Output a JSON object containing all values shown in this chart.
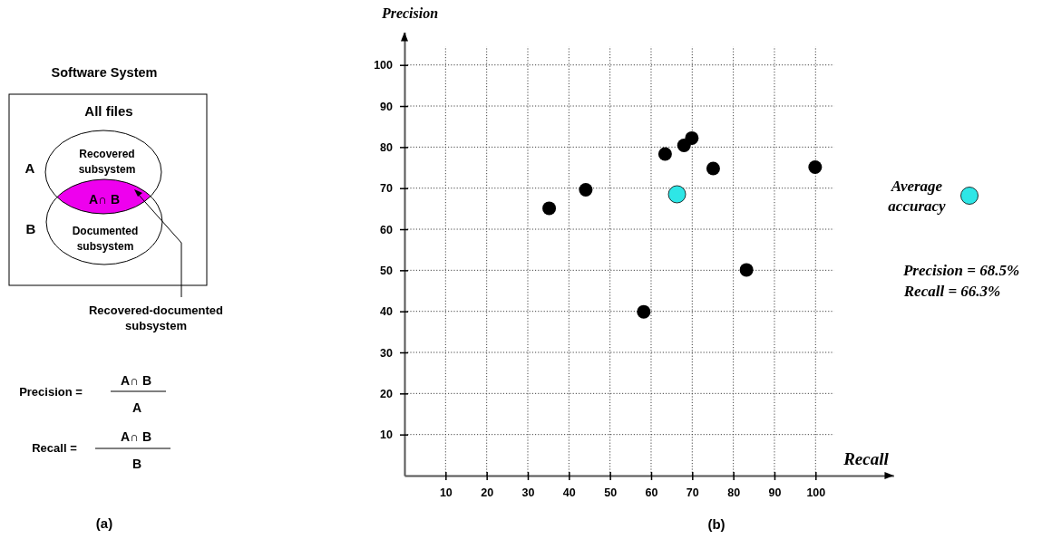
{
  "chart_data": [
    {
      "type": "other",
      "title": "Software System",
      "annotations": [
        "All files",
        "A",
        "B",
        "Recovered subsystem",
        "A∩ B",
        "Documented subsystem",
        "Recovered-documented subsystem",
        "Precision =",
        "A∩ B",
        "A",
        "Recall =",
        "A∩ B",
        "B",
        "(a)"
      ]
    },
    {
      "type": "scatter",
      "xlabel": "Recall",
      "ylabel": "Precision",
      "xlim": [
        0,
        119
      ],
      "ylim": [
        0,
        108
      ],
      "xticks": [
        10,
        20,
        30,
        40,
        50,
        60,
        70,
        80,
        90,
        100
      ],
      "yticks": [
        10,
        20,
        30,
        40,
        50,
        60,
        70,
        80,
        90,
        100
      ],
      "grid": true,
      "legend": "right",
      "marker": "circle",
      "series": [
        {
          "color": "#000000",
          "x": [
            35.2,
            44.1,
            63.4,
            68.0,
            69.9,
            75.1,
            99.9,
            83.2,
            58.2
          ],
          "values": [
            65.1,
            69.6,
            78.3,
            80.4,
            82.2,
            74.8,
            75.1,
            50.1,
            39.9
          ]
        },
        {
          "name": "Average accuracy",
          "color": "#2ee6e6",
          "x": [
            66.3
          ],
          "values": [
            68.5
          ]
        }
      ],
      "annotations": [
        "Precision = 68.5%",
        "Recall = 66.3%",
        "(b)"
      ]
    }
  ]
}
